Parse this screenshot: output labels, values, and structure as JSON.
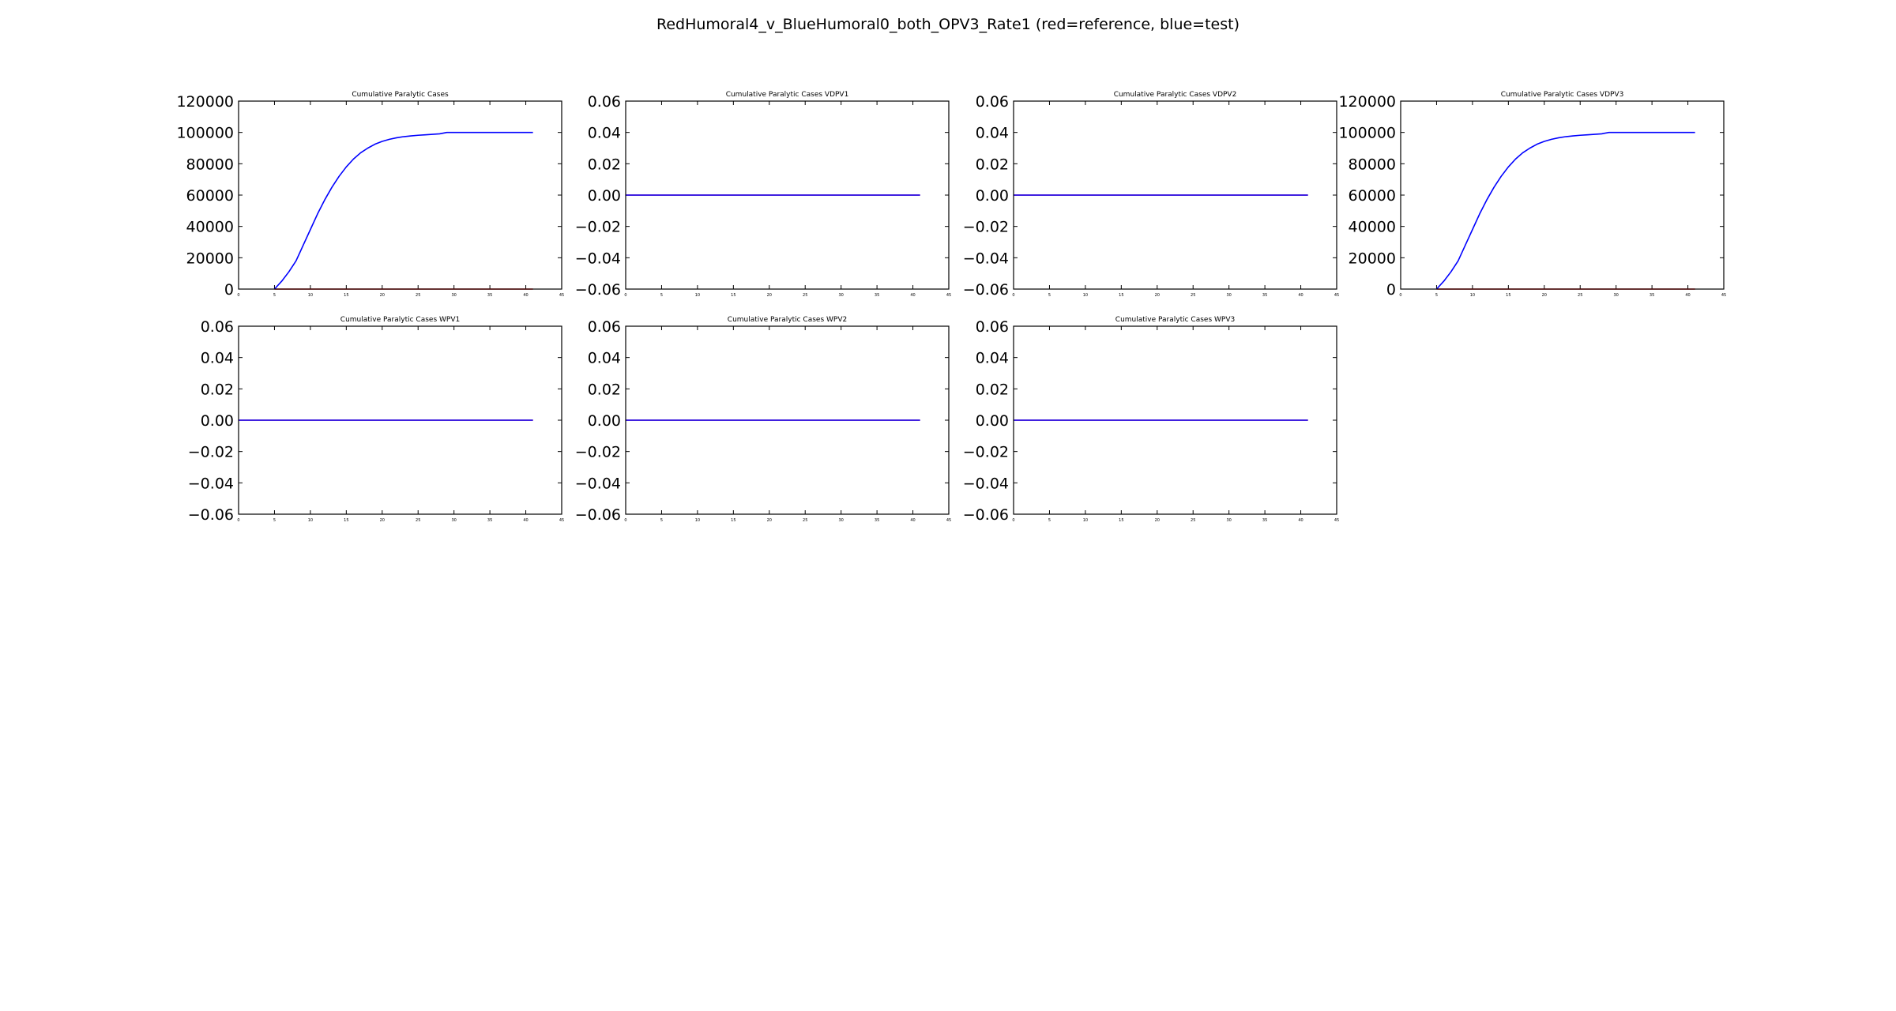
{
  "figure": {
    "title": "RedHumoral4_v_BlueHumoral0_both_OPV3_Rate1 (red=reference, blue=test)"
  },
  "colors": {
    "reference": "#ff0000",
    "test": "#0000ff",
    "axes": "#000000",
    "background": "#ffffff"
  },
  "chart_data": [
    {
      "type": "line",
      "title": "Cumulative Paralytic Cases",
      "xlim": [
        0,
        45
      ],
      "ylim": [
        0,
        120000
      ],
      "xticks": [
        0,
        5,
        10,
        15,
        20,
        25,
        30,
        35,
        40,
        45
      ],
      "yticks": [
        0,
        20000,
        40000,
        60000,
        80000,
        100000,
        120000
      ],
      "ytick_labels": [
        "0",
        "20000",
        "40000",
        "60000",
        "80000",
        "100000",
        "120000"
      ],
      "series": [
        {
          "name": "reference",
          "color": "#ff0000",
          "x": [
            5,
            10,
            15,
            20,
            25,
            29,
            35,
            41
          ],
          "y": [
            0,
            0,
            0,
            0,
            0,
            0,
            0,
            0
          ]
        },
        {
          "name": "test",
          "color": "#0000ff",
          "x": [
            5,
            6,
            7,
            8,
            9,
            10,
            11,
            12,
            13,
            14,
            15,
            16,
            17,
            18,
            19,
            20,
            21,
            22,
            23,
            24,
            25,
            26,
            27,
            28,
            29,
            30,
            35,
            41
          ],
          "y": [
            0,
            5000,
            11000,
            18000,
            28000,
            38000,
            48000,
            57000,
            65000,
            72000,
            78000,
            83000,
            87000,
            90000,
            92500,
            94300,
            95600,
            96600,
            97300,
            97800,
            98200,
            98500,
            98800,
            99100,
            100000,
            100000,
            100000,
            100000
          ]
        }
      ]
    },
    {
      "type": "line",
      "title": "Cumulative Paralytic Cases VDPV1",
      "xlim": [
        0,
        45
      ],
      "ylim": [
        -0.06,
        0.06
      ],
      "xticks": [
        0,
        5,
        10,
        15,
        20,
        25,
        30,
        35,
        40,
        45
      ],
      "yticks": [
        -0.06,
        -0.04,
        -0.02,
        0.0,
        0.02,
        0.04,
        0.06
      ],
      "ytick_labels": [
        "−0.06",
        "−0.04",
        "−0.02",
        "0.00",
        "0.02",
        "0.04",
        "0.06"
      ],
      "series": [
        {
          "name": "reference",
          "color": "#ff0000",
          "x": [
            0,
            41
          ],
          "y": [
            0,
            0
          ]
        },
        {
          "name": "test",
          "color": "#0000ff",
          "x": [
            0,
            41
          ],
          "y": [
            0,
            0
          ]
        }
      ]
    },
    {
      "type": "line",
      "title": "Cumulative Paralytic Cases VDPV2",
      "xlim": [
        0,
        45
      ],
      "ylim": [
        -0.06,
        0.06
      ],
      "xticks": [
        0,
        5,
        10,
        15,
        20,
        25,
        30,
        35,
        40,
        45
      ],
      "yticks": [
        -0.06,
        -0.04,
        -0.02,
        0.0,
        0.02,
        0.04,
        0.06
      ],
      "ytick_labels": [
        "−0.06",
        "−0.04",
        "−0.02",
        "0.00",
        "0.02",
        "0.04",
        "0.06"
      ],
      "series": [
        {
          "name": "reference",
          "color": "#ff0000",
          "x": [
            0,
            41
          ],
          "y": [
            0,
            0
          ]
        },
        {
          "name": "test",
          "color": "#0000ff",
          "x": [
            0,
            41
          ],
          "y": [
            0,
            0
          ]
        }
      ]
    },
    {
      "type": "line",
      "title": "Cumulative Paralytic Cases VDPV3",
      "xlim": [
        0,
        45
      ],
      "ylim": [
        0,
        120000
      ],
      "xticks": [
        0,
        5,
        10,
        15,
        20,
        25,
        30,
        35,
        40,
        45
      ],
      "yticks": [
        0,
        20000,
        40000,
        60000,
        80000,
        100000,
        120000
      ],
      "ytick_labels": [
        "0",
        "20000",
        "40000",
        "60000",
        "80000",
        "100000",
        "120000"
      ],
      "series": [
        {
          "name": "reference",
          "color": "#ff0000",
          "x": [
            5,
            10,
            15,
            20,
            25,
            29,
            35,
            41
          ],
          "y": [
            0,
            0,
            0,
            0,
            0,
            0,
            0,
            0
          ]
        },
        {
          "name": "test",
          "color": "#0000ff",
          "x": [
            5,
            6,
            7,
            8,
            9,
            10,
            11,
            12,
            13,
            14,
            15,
            16,
            17,
            18,
            19,
            20,
            21,
            22,
            23,
            24,
            25,
            26,
            27,
            28,
            29,
            30,
            35,
            41
          ],
          "y": [
            0,
            5000,
            11000,
            18000,
            28000,
            38000,
            48000,
            57000,
            65000,
            72000,
            78000,
            83000,
            87000,
            90000,
            92500,
            94300,
            95600,
            96600,
            97300,
            97800,
            98200,
            98500,
            98800,
            99100,
            100000,
            100000,
            100000,
            100000
          ]
        }
      ]
    },
    {
      "type": "line",
      "title": "Cumulative Paralytic Cases WPV1",
      "xlim": [
        0,
        45
      ],
      "ylim": [
        -0.06,
        0.06
      ],
      "xticks": [
        0,
        5,
        10,
        15,
        20,
        25,
        30,
        35,
        40,
        45
      ],
      "yticks": [
        -0.06,
        -0.04,
        -0.02,
        0.0,
        0.02,
        0.04,
        0.06
      ],
      "ytick_labels": [
        "−0.06",
        "−0.04",
        "−0.02",
        "0.00",
        "0.02",
        "0.04",
        "0.06"
      ],
      "series": [
        {
          "name": "reference",
          "color": "#ff0000",
          "x": [
            0,
            41
          ],
          "y": [
            0,
            0
          ]
        },
        {
          "name": "test",
          "color": "#0000ff",
          "x": [
            0,
            41
          ],
          "y": [
            0,
            0
          ]
        }
      ]
    },
    {
      "type": "line",
      "title": "Cumulative Paralytic Cases WPV2",
      "xlim": [
        0,
        45
      ],
      "ylim": [
        -0.06,
        0.06
      ],
      "xticks": [
        0,
        5,
        10,
        15,
        20,
        25,
        30,
        35,
        40,
        45
      ],
      "yticks": [
        -0.06,
        -0.04,
        -0.02,
        0.0,
        0.02,
        0.04,
        0.06
      ],
      "ytick_labels": [
        "−0.06",
        "−0.04",
        "−0.02",
        "0.00",
        "0.02",
        "0.04",
        "0.06"
      ],
      "series": [
        {
          "name": "reference",
          "color": "#ff0000",
          "x": [
            0,
            41
          ],
          "y": [
            0,
            0
          ]
        },
        {
          "name": "test",
          "color": "#0000ff",
          "x": [
            0,
            41
          ],
          "y": [
            0,
            0
          ]
        }
      ]
    },
    {
      "type": "line",
      "title": "Cumulative Paralytic Cases WPV3",
      "xlim": [
        0,
        45
      ],
      "ylim": [
        -0.06,
        0.06
      ],
      "xticks": [
        0,
        5,
        10,
        15,
        20,
        25,
        30,
        35,
        40,
        45
      ],
      "yticks": [
        -0.06,
        -0.04,
        -0.02,
        0.0,
        0.02,
        0.04,
        0.06
      ],
      "ytick_labels": [
        "−0.06",
        "−0.04",
        "−0.02",
        "0.00",
        "0.02",
        "0.04",
        "0.06"
      ],
      "series": [
        {
          "name": "reference",
          "color": "#ff0000",
          "x": [
            0,
            41
          ],
          "y": [
            0,
            0
          ]
        },
        {
          "name": "test",
          "color": "#0000ff",
          "x": [
            0,
            41
          ],
          "y": [
            0,
            0
          ]
        }
      ]
    }
  ]
}
